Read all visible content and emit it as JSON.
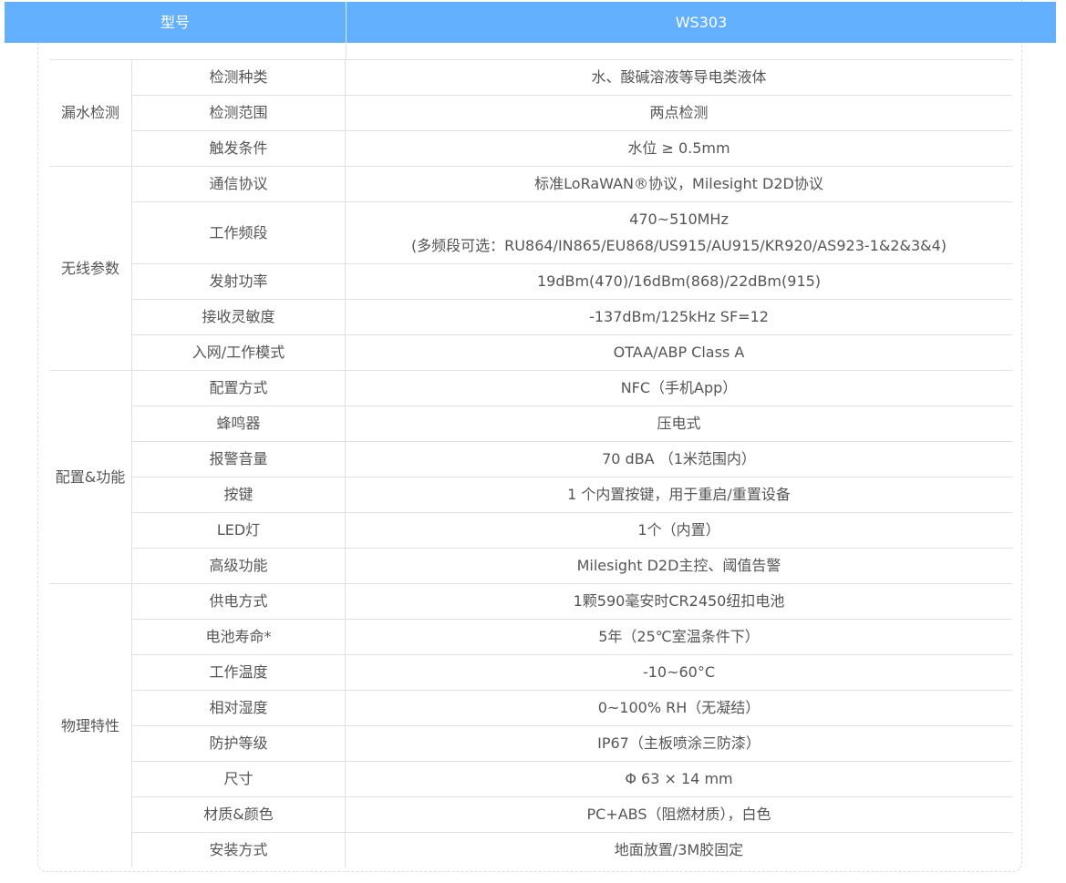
{
  "header": {
    "model_label": "型号",
    "model_value": "WS303"
  },
  "groups": [
    {
      "name": "漏水检测",
      "rows": [
        [
          "检测种类",
          "水、酸碱溶液等导电类液体"
        ],
        [
          "检测范围",
          "两点检测"
        ],
        [
          "触发条件",
          "水位 ≥ 0.5mm"
        ]
      ]
    },
    {
      "name": "无线参数",
      "rows": [
        [
          "通信协议",
          "标准LoRaWAN®协议，Milesight D2D协议"
        ],
        [
          "工作频段",
          "470~510MHz",
          "(多频段可选：RU864/IN865/EU868/US915/AU915/KR920/AS923-1&2&3&4)"
        ],
        [
          "发射功率",
          "19dBm(470)/16dBm(868)/22dBm(915)"
        ],
        [
          "接收灵敏度",
          "-137dBm/125kHz SF=12"
        ],
        [
          "入网/工作模式",
          "OTAA/ABP Class A"
        ]
      ]
    },
    {
      "name": "配置&功能",
      "rows": [
        [
          "配置方式",
          "NFC（手机App）"
        ],
        [
          "蜂鸣器",
          "压电式"
        ],
        [
          "报警音量",
          "70 dBA （1米范围内）"
        ],
        [
          "按键",
          "1 个内置按键，用于重启/重置设备"
        ],
        [
          "LED灯",
          "1个（内置）"
        ],
        [
          "高级功能",
          "Milesight D2D主控、阈值告警"
        ]
      ]
    },
    {
      "name": "物理特性",
      "rows": [
        [
          "供电方式",
          "1颗590毫安时CR2450纽扣电池"
        ],
        [
          "电池寿命*",
          "5年（25℃室温条件下）"
        ],
        [
          "工作温度",
          "-10~60°C"
        ],
        [
          "相对湿度",
          "0~100% RH（无凝结）"
        ],
        [
          "防护等级",
          "IP67（主板喷涂三防漆）"
        ],
        [
          "尺寸",
          "Φ 63 × 14 mm"
        ],
        [
          "材质&颜色",
          "PC+ABS（阻燃材质），白色"
        ],
        [
          "安装方式",
          "地面放置/3M胶固定"
        ]
      ]
    }
  ],
  "colors": {
    "header_bg": "#63b0fe",
    "text": "#555555",
    "border": "#e0e0e0"
  }
}
